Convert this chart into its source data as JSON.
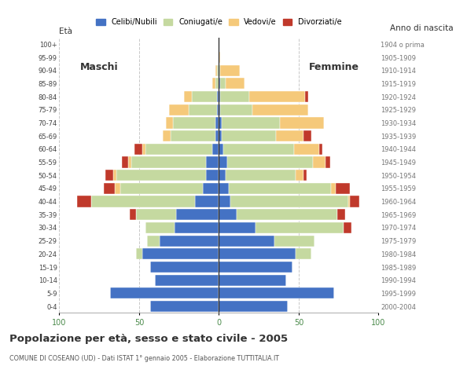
{
  "age_groups": [
    "0-4",
    "5-9",
    "10-14",
    "15-19",
    "20-24",
    "25-29",
    "30-34",
    "35-39",
    "40-44",
    "45-49",
    "50-54",
    "55-59",
    "60-64",
    "65-69",
    "70-74",
    "75-79",
    "80-84",
    "85-89",
    "90-94",
    "95-99",
    "100+"
  ],
  "birth_years": [
    "2000-2004",
    "1995-1999",
    "1990-1994",
    "1985-1989",
    "1980-1984",
    "1975-1979",
    "1970-1974",
    "1965-1969",
    "1960-1964",
    "1955-1959",
    "1950-1954",
    "1945-1949",
    "1940-1944",
    "1935-1939",
    "1930-1934",
    "1925-1929",
    "1920-1924",
    "1915-1919",
    "1910-1914",
    "1905-1909",
    "1904 o prima"
  ],
  "colors": {
    "celibe": "#4472C4",
    "coniugato": "#C5D9A0",
    "vedovo": "#F5C97A",
    "divorziato": "#C0392B"
  },
  "males": {
    "celibe": [
      43,
      68,
      40,
      43,
      48,
      37,
      28,
      27,
      15,
      10,
      8,
      8,
      4,
      2,
      2,
      1,
      1,
      0,
      0,
      0,
      0
    ],
    "coniugato": [
      0,
      0,
      0,
      0,
      4,
      8,
      18,
      25,
      65,
      52,
      56,
      47,
      42,
      28,
      27,
      18,
      16,
      2,
      1,
      0,
      0
    ],
    "vedovo": [
      0,
      0,
      0,
      0,
      0,
      0,
      0,
      0,
      0,
      3,
      2,
      2,
      2,
      5,
      4,
      12,
      5,
      2,
      1,
      0,
      0
    ],
    "divorziato": [
      0,
      0,
      0,
      0,
      0,
      0,
      0,
      4,
      9,
      7,
      5,
      4,
      5,
      0,
      0,
      0,
      0,
      0,
      0,
      0,
      0
    ]
  },
  "females": {
    "celibe": [
      43,
      72,
      42,
      46,
      48,
      35,
      23,
      11,
      7,
      6,
      4,
      5,
      3,
      2,
      2,
      1,
      1,
      1,
      0,
      0,
      0
    ],
    "coniugato": [
      0,
      0,
      0,
      0,
      10,
      25,
      55,
      63,
      74,
      64,
      44,
      54,
      44,
      34,
      36,
      20,
      18,
      3,
      1,
      0,
      0
    ],
    "vedovo": [
      0,
      0,
      0,
      0,
      0,
      0,
      0,
      0,
      1,
      3,
      5,
      8,
      16,
      17,
      28,
      35,
      35,
      12,
      12,
      1,
      0
    ],
    "divorziato": [
      0,
      0,
      0,
      0,
      0,
      0,
      5,
      5,
      6,
      9,
      2,
      3,
      2,
      5,
      0,
      0,
      2,
      0,
      0,
      0,
      0
    ]
  },
  "title": "Popolazione per età, sesso e stato civile - 2005",
  "subtitle": "COMUNE DI COSEANO (UD) - Dati ISTAT 1° gennaio 2005 - Elaborazione TUTTITALIA.IT",
  "xlabel_left": "Maschi",
  "xlabel_right": "Femmine",
  "ylabel_left": "Età",
  "ylabel_right": "Anno di nascita",
  "xlim": 100,
  "bg_color": "#ffffff",
  "grid_color": "#c8c8c8",
  "legend_labels": [
    "Celibi/Nubili",
    "Coniugati/e",
    "Vedovi/e",
    "Divorziati/e"
  ]
}
